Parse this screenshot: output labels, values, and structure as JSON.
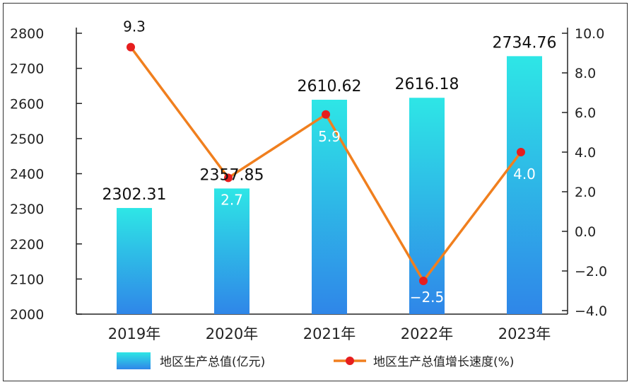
{
  "chart_data": {
    "type": "bar",
    "categories": [
      "2019年",
      "2020年",
      "2021年",
      "2022年",
      "2023年"
    ],
    "series": [
      {
        "name": "地区生产总值(亿元)",
        "type": "bar",
        "axis": "left",
        "values": [
          2302.31,
          2357.85,
          2610.62,
          2616.18,
          2734.76
        ],
        "labels": [
          "2302.31",
          "2357.85",
          "2610.62",
          "2616.18",
          "2734.76"
        ]
      },
      {
        "name": "地区生产总值增长速度(%)",
        "type": "line",
        "axis": "right",
        "values": [
          9.3,
          2.7,
          5.9,
          -2.5,
          4.0
        ],
        "labels": [
          "9.3",
          "2.7",
          "5.9",
          "−2.5",
          "4.0"
        ]
      }
    ],
    "y_left": {
      "ylim": [
        2000,
        2800
      ],
      "ticks": [
        "2000",
        "2100",
        "2200",
        "2300",
        "2400",
        "2500",
        "2600",
        "2700",
        "2800"
      ]
    },
    "y_right": {
      "ylim": [
        -4.0,
        10.0
      ],
      "ticks": [
        "−4.0",
        "−2.0",
        "0.0",
        "2.0",
        "4.0",
        "6.0",
        "8.0",
        "10.0"
      ]
    },
    "grid": false,
    "legend_position": "bottom",
    "colors": {
      "bar_top": "#2ee6e6",
      "bar_bottom": "#2f86e8",
      "line": "#f07f1e",
      "marker": "#e61e1e"
    }
  }
}
